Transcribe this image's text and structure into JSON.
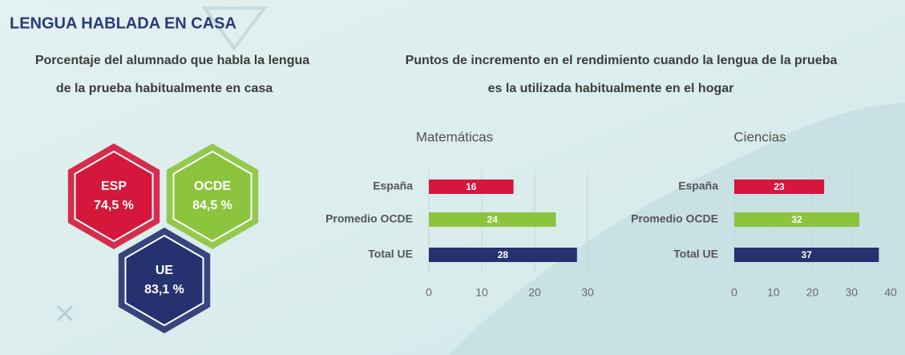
{
  "title": "LENGUA HABLADA EN CASA",
  "left_panel": {
    "subtitle": [
      "Porcentaje del alumnado que habla la lengua",
      "de la prueba habitualmente en casa"
    ],
    "hexagons": [
      {
        "code": "ESP",
        "value": "74,5 %",
        "color": "#d5173b"
      },
      {
        "code": "OCDE",
        "value": "84,5 %",
        "color": "#8cc43e"
      },
      {
        "code": "UE",
        "value": "83,1 %",
        "color": "#25326f"
      }
    ]
  },
  "right_panel": {
    "subtitle": [
      "Puntos de incremento en el rendimiento cuando la lengua de la prueba",
      "es la utilizada habitualmente en el hogar"
    ]
  },
  "chart_data": [
    {
      "type": "bar",
      "orientation": "horizontal",
      "title": "Matemáticas",
      "categories": [
        "España",
        "Promedio OCDE",
        "Total UE"
      ],
      "values": [
        16,
        24,
        28
      ],
      "colors": [
        "#d5173b",
        "#8cc43e",
        "#25326f"
      ],
      "xlim": [
        0,
        30
      ],
      "xticks": [
        0,
        10,
        20,
        30
      ],
      "grid": true
    },
    {
      "type": "bar",
      "orientation": "horizontal",
      "title": "Ciencias",
      "categories": [
        "España",
        "Promedio OCDE",
        "Total UE"
      ],
      "values": [
        23,
        32,
        37
      ],
      "colors": [
        "#d5173b",
        "#8cc43e",
        "#25326f"
      ],
      "xlim": [
        0,
        40
      ],
      "xticks": [
        0,
        10,
        20,
        30,
        40
      ],
      "grid": true
    }
  ]
}
